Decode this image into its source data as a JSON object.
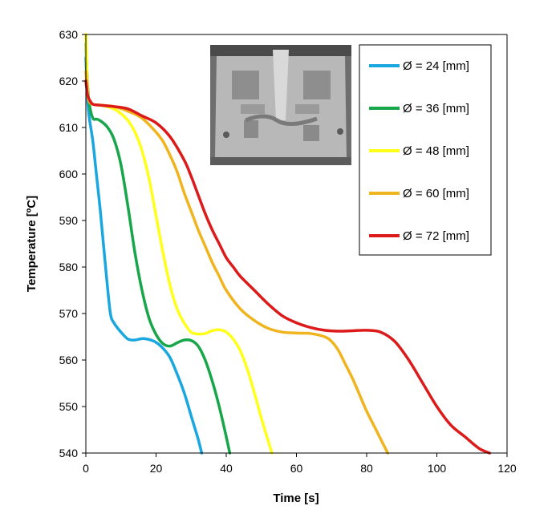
{
  "chart_data": {
    "type": "line",
    "xlabel": "Time [s]",
    "ylabel": "Temperature [ºC]",
    "xlim": [
      0,
      120
    ],
    "ylim": [
      540,
      630
    ],
    "xticks": [
      "0",
      "20",
      "40",
      "60",
      "80",
      "100",
      "120"
    ],
    "yticks": [
      "540",
      "550",
      "560",
      "570",
      "580",
      "590",
      "600",
      "610",
      "620",
      "630"
    ],
    "grid": false,
    "legend_position": "top-right",
    "inset_photo": "mold casting photograph",
    "series": [
      {
        "name": "Ø = 24 [mm]",
        "color": "#1aa7e0",
        "x": [
          0,
          0.5,
          1,
          2,
          3,
          4,
          5,
          6,
          7,
          8,
          10,
          12,
          14,
          16,
          18,
          20,
          22,
          24,
          26,
          28,
          30,
          31,
          32,
          33
        ],
        "y": [
          625,
          616,
          612,
          607,
          600,
          593,
          585,
          577,
          570,
          568,
          566,
          564.5,
          564.3,
          564.6,
          564.4,
          563.8,
          562.5,
          560.5,
          557,
          553,
          548,
          545.5,
          543,
          540
        ]
      },
      {
        "name": "Ø = 36 [mm]",
        "color": "#17a64a",
        "x": [
          0,
          0.5,
          1,
          2,
          3,
          4,
          6,
          8,
          10,
          12,
          14,
          16,
          18,
          20,
          22,
          24,
          26,
          28,
          30,
          32,
          34,
          36,
          38,
          40,
          41
        ],
        "y": [
          628,
          619,
          615,
          612,
          611.8,
          611.5,
          610.2,
          607.5,
          602,
          593,
          583,
          575,
          569,
          565.5,
          563.5,
          563,
          563.7,
          564.3,
          564.2,
          563,
          560,
          555.5,
          550,
          543.5,
          540
        ]
      },
      {
        "name": "Ø = 48 [mm]",
        "color": "#ffff1a",
        "x": [
          0,
          0.5,
          1,
          2,
          4,
          6,
          8,
          10,
          12,
          14,
          16,
          18,
          20,
          22,
          24,
          26,
          28,
          30,
          32,
          34,
          36,
          38,
          40,
          42,
          44,
          46,
          48,
          50,
          52,
          53
        ],
        "y": [
          630,
          618,
          616,
          615,
          614.8,
          614.5,
          614,
          613,
          611.5,
          609,
          605,
          599,
          591,
          583,
          576,
          571,
          568,
          566,
          565.6,
          565.7,
          566.3,
          566.5,
          566,
          564.5,
          562,
          558,
          553,
          547.5,
          542.5,
          540
        ]
      },
      {
        "name": "Ø = 60 [mm]",
        "color": "#f0b41e",
        "x": [
          0,
          0.5,
          1,
          2,
          4,
          8,
          12,
          16,
          20,
          22,
          24,
          26,
          28,
          30,
          32,
          34,
          36,
          38,
          40,
          44,
          48,
          52,
          56,
          60,
          64,
          68,
          70,
          72,
          74,
          76,
          78,
          80,
          82,
          84,
          86
        ],
        "y": [
          622,
          617,
          615.5,
          615,
          614.8,
          614.5,
          613.5,
          612,
          609,
          607,
          604,
          600.5,
          596,
          592,
          588,
          584.5,
          581,
          578,
          575,
          571,
          568.5,
          566.8,
          566,
          565.8,
          565.7,
          565,
          564,
          562,
          559,
          556,
          552.5,
          549,
          546,
          543,
          540
        ]
      },
      {
        "name": "Ø = 72 [mm]",
        "color": "#dc1a1a",
        "x": [
          0,
          0.5,
          1,
          2,
          4,
          8,
          12,
          16,
          20,
          24,
          28,
          30,
          32,
          34,
          36,
          38,
          40,
          42,
          44,
          48,
          52,
          56,
          60,
          64,
          68,
          72,
          76,
          80,
          84,
          88,
          92,
          96,
          100,
          104,
          108,
          112,
          115
        ],
        "y": [
          620,
          617,
          616,
          615,
          614.8,
          614.5,
          614,
          612.5,
          611,
          608,
          603,
          599.5,
          595.5,
          591.5,
          588,
          585,
          582,
          580,
          578,
          575,
          572,
          569.5,
          568,
          567,
          566.4,
          566.2,
          566.3,
          566.4,
          566,
          564,
          560,
          555,
          550,
          546,
          543.5,
          541,
          540
        ]
      }
    ]
  }
}
